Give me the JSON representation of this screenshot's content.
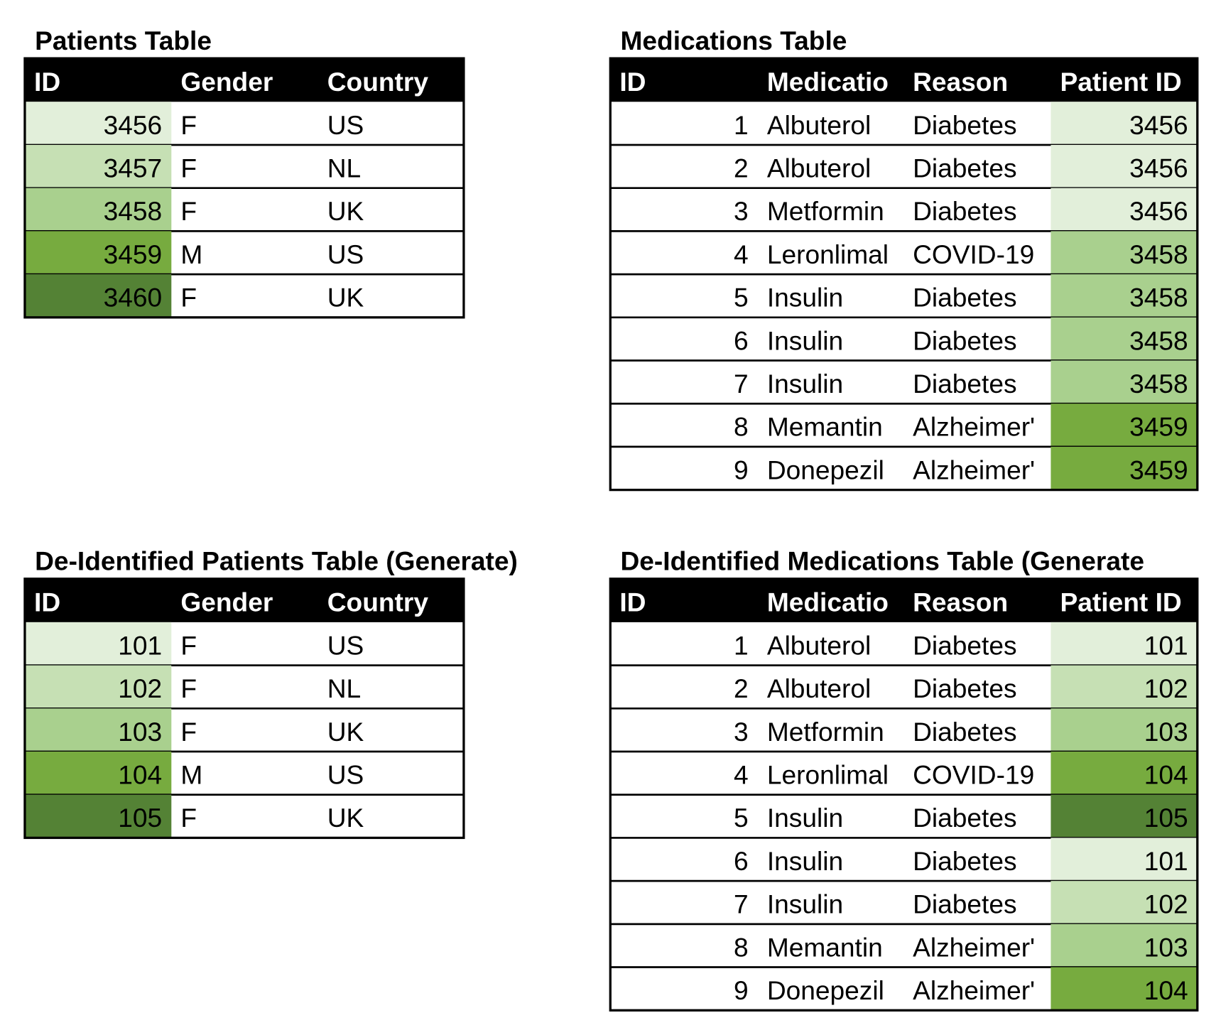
{
  "tables": [
    {
      "title": "Patients Table",
      "columns": [
        "ID",
        "Gender",
        "Country"
      ],
      "rows": [
        [
          3456,
          "F",
          "US"
        ],
        [
          3457,
          "F",
          "NL"
        ],
        [
          3458,
          "F",
          "UK"
        ],
        [
          3459,
          "M",
          "US"
        ],
        [
          3460,
          "F",
          "UK"
        ]
      ],
      "id_colors": [
        "#e2efda",
        "#c6e0b4",
        "#a9d08e",
        "#77ab3f",
        "#548235"
      ]
    },
    {
      "title": "Medications Table",
      "columns": [
        "ID",
        "Medicatio",
        "Reason",
        "Patient ID"
      ],
      "rows": [
        [
          1,
          "Albuterol",
          "Diabetes",
          3456
        ],
        [
          2,
          "Albuterol",
          "Diabetes",
          3456
        ],
        [
          3,
          "Metformin",
          "Diabetes",
          3456
        ],
        [
          4,
          "Leronlimal",
          "COVID-19",
          3458
        ],
        [
          5,
          "Insulin",
          "Diabetes",
          3458
        ],
        [
          6,
          "Insulin",
          "Diabetes",
          3458
        ],
        [
          7,
          "Insulin",
          "Diabetes",
          3458
        ],
        [
          8,
          "Memantin",
          "Alzheimer'",
          3459
        ],
        [
          9,
          "Donepezil",
          "Alzheimer'",
          3459
        ]
      ],
      "id_colors": [
        "#e2efda",
        "#e2efda",
        "#e2efda",
        "#a9d08e",
        "#a9d08e",
        "#a9d08e",
        "#a9d08e",
        "#77ab3f",
        "#77ab3f"
      ]
    },
    {
      "title": "De-Identified Patients Table (Generate)",
      "columns": [
        "ID",
        "Gender",
        "Country"
      ],
      "rows": [
        [
          101,
          "F",
          "US"
        ],
        [
          102,
          "F",
          "NL"
        ],
        [
          103,
          "F",
          "UK"
        ],
        [
          104,
          "M",
          "US"
        ],
        [
          105,
          "F",
          "UK"
        ]
      ],
      "id_colors": [
        "#e2efda",
        "#c6e0b4",
        "#a9d08e",
        "#77ab3f",
        "#548235"
      ]
    },
    {
      "title": "De-Identified Medications Table (Generate",
      "columns": [
        "ID",
        "Medicatio",
        "Reason",
        "Patient ID"
      ],
      "rows": [
        [
          1,
          "Albuterol",
          "Diabetes",
          101
        ],
        [
          2,
          "Albuterol",
          "Diabetes",
          102
        ],
        [
          3,
          "Metformin",
          "Diabetes",
          103
        ],
        [
          4,
          "Leronlimal",
          "COVID-19",
          104
        ],
        [
          5,
          "Insulin",
          "Diabetes",
          105
        ],
        [
          6,
          "Insulin",
          "Diabetes",
          101
        ],
        [
          7,
          "Insulin",
          "Diabetes",
          102
        ],
        [
          8,
          "Memantin",
          "Alzheimer'",
          103
        ],
        [
          9,
          "Donepezil",
          "Alzheimer'",
          104
        ]
      ],
      "id_colors": [
        "#e2efda",
        "#c6e0b4",
        "#a9d08e",
        "#77ab3f",
        "#548235",
        "#e2efda",
        "#c6e0b4",
        "#a9d08e",
        "#77ab3f"
      ]
    }
  ]
}
